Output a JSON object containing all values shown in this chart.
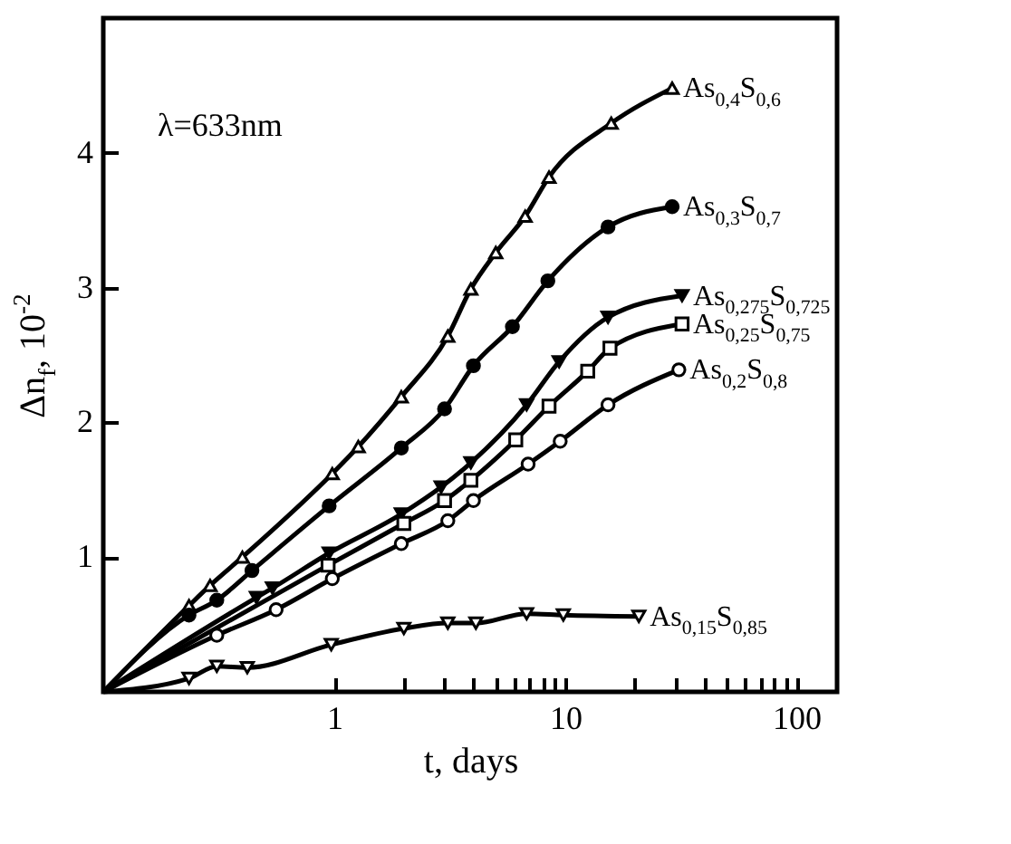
{
  "chart_data": {
    "type": "line",
    "xlabel": "t, days",
    "ylabel": "Δn$_{f}$, 10$^{-2}$",
    "log": "x",
    "xlim": [
      0.1,
      150
    ],
    "ylim": [
      0,
      5
    ],
    "xticks": [
      1,
      {
        "value": 2,
        "label": null
      },
      {
        "value": 3,
        "label": null
      },
      {
        "value": 4,
        "label": null
      },
      {
        "value": 5,
        "label": null
      },
      {
        "value": 6,
        "label": null
      },
      {
        "value": 7,
        "label": null
      },
      {
        "value": 8,
        "label": null
      },
      {
        "value": 9,
        "label": null
      },
      10,
      {
        "value": 20,
        "label": null
      },
      {
        "value": 30,
        "label": null
      },
      {
        "value": 40,
        "label": null
      },
      {
        "value": 50,
        "label": null
      },
      {
        "value": 60,
        "label": null
      },
      {
        "value": 70,
        "label": null
      },
      {
        "value": 80,
        "label": null
      },
      {
        "value": 90,
        "label": null
      },
      100
    ],
    "yticks": [
      1,
      2,
      3,
      4
    ],
    "annotations": [
      "λ=633nm"
    ],
    "series": [
      {
        "name": "As$_{0,4}$S$_{0,6}$",
        "color": "#000000",
        "marker": "triangle",
        "x": [
          0.1,
          0.235,
          0.29,
          0.4,
          0.98,
          1.27,
          1.95,
          3.1,
          3.9,
          5,
          6.7,
          8.5,
          15.8,
          29
        ],
        "values": [
          0,
          0.64,
          0.79,
          1.0,
          1.62,
          1.82,
          2.19,
          2.64,
          2.99,
          3.26,
          3.53,
          3.82,
          4.22,
          4.48
        ]
      },
      {
        "name": "As$_{0,3}$S$_{0,7}$",
        "color": "#000000",
        "marker": "circle",
        "x": [
          0.1,
          0.235,
          0.31,
          0.44,
          0.95,
          1.95,
          3.0,
          4.0,
          5.9,
          8.4,
          15.3,
          29
        ],
        "values": [
          0,
          0.57,
          0.68,
          0.9,
          1.38,
          1.81,
          2.1,
          2.42,
          2.71,
          3.05,
          3.45,
          3.6
        ]
      },
      {
        "name": "As$_{0,275}$S$_{0,725}$",
        "color": "#000000",
        "marker": "triangle",
        "x": [
          0.1,
          0.46,
          0.54,
          0.95,
          1.95,
          2.9,
          3.9,
          6.8,
          9.4,
          15.3,
          32
        ],
        "values": [
          0,
          0.7,
          0.77,
          1.03,
          1.32,
          1.52,
          1.7,
          2.13,
          2.45,
          2.78,
          2.94
        ]
      },
      {
        "name": "As$_{0,25}$S$_{0,75}$",
        "color": "#000000",
        "marker": "square",
        "x": [
          0.1,
          0.94,
          2.0,
          3.0,
          3.9,
          6.1,
          8.5,
          12.5,
          15.6,
          32
        ],
        "values": [
          0,
          0.94,
          1.25,
          1.42,
          1.57,
          1.87,
          2.12,
          2.38,
          2.55,
          2.73
        ]
      },
      {
        "name": "As$_{0,2}$S$_{0,8}$",
        "color": "#000000",
        "marker": "circle",
        "x": [
          0.1,
          0.31,
          0.56,
          0.98,
          1.95,
          3.1,
          4.0,
          6.9,
          9.5,
          15.3,
          31
        ],
        "values": [
          0,
          0.42,
          0.61,
          0.84,
          1.1,
          1.27,
          1.42,
          1.69,
          1.86,
          2.13,
          2.39
        ]
      },
      {
        "name": "As$_{0,15}$S$_{0,85}$",
        "color": "#000000",
        "marker": "triangle",
        "x": [
          0.1,
          0.235,
          0.31,
          0.42,
          0.97,
          2.0,
          3.1,
          4.1,
          6.8,
          9.8,
          20.8
        ],
        "values": [
          0,
          0.1,
          0.19,
          0.18,
          0.35,
          0.47,
          0.51,
          0.51,
          0.58,
          0.57,
          0.56
        ]
      }
    ]
  }
}
